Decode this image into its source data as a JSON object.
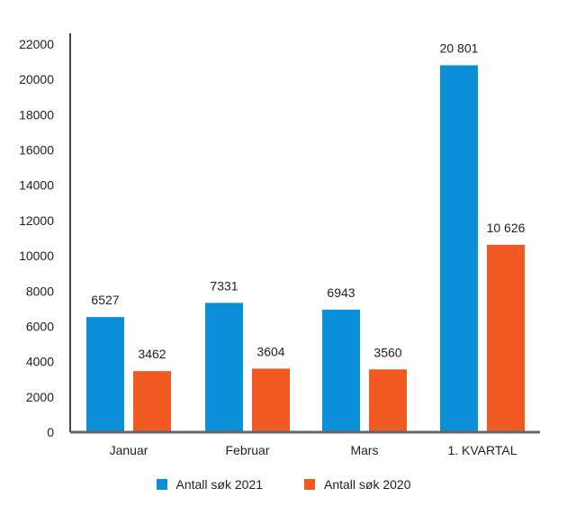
{
  "chart_data": {
    "type": "bar",
    "title": "",
    "xlabel": "",
    "ylabel": "",
    "categories": [
      "Januar",
      "Februar",
      "Mars",
      "1. KVARTAL"
    ],
    "ylim": [
      0,
      22000
    ],
    "yticks": [
      0,
      2000,
      4000,
      6000,
      8000,
      10000,
      12000,
      14000,
      16000,
      18000,
      20000,
      22000
    ],
    "grid": false,
    "legend_position": "bottom",
    "series": [
      {
        "name": "Antall søk 2021",
        "color": "#0b8fd8",
        "values": [
          6527,
          7331,
          6943,
          20801
        ],
        "labels": [
          "6527",
          "7331",
          "6943",
          "20 801"
        ]
      },
      {
        "name": "Antall søk 2020",
        "color": "#f05a22",
        "values": [
          3462,
          3604,
          3560,
          10626
        ],
        "labels": [
          "3462",
          "3604",
          "3560",
          "10 626"
        ]
      }
    ]
  }
}
